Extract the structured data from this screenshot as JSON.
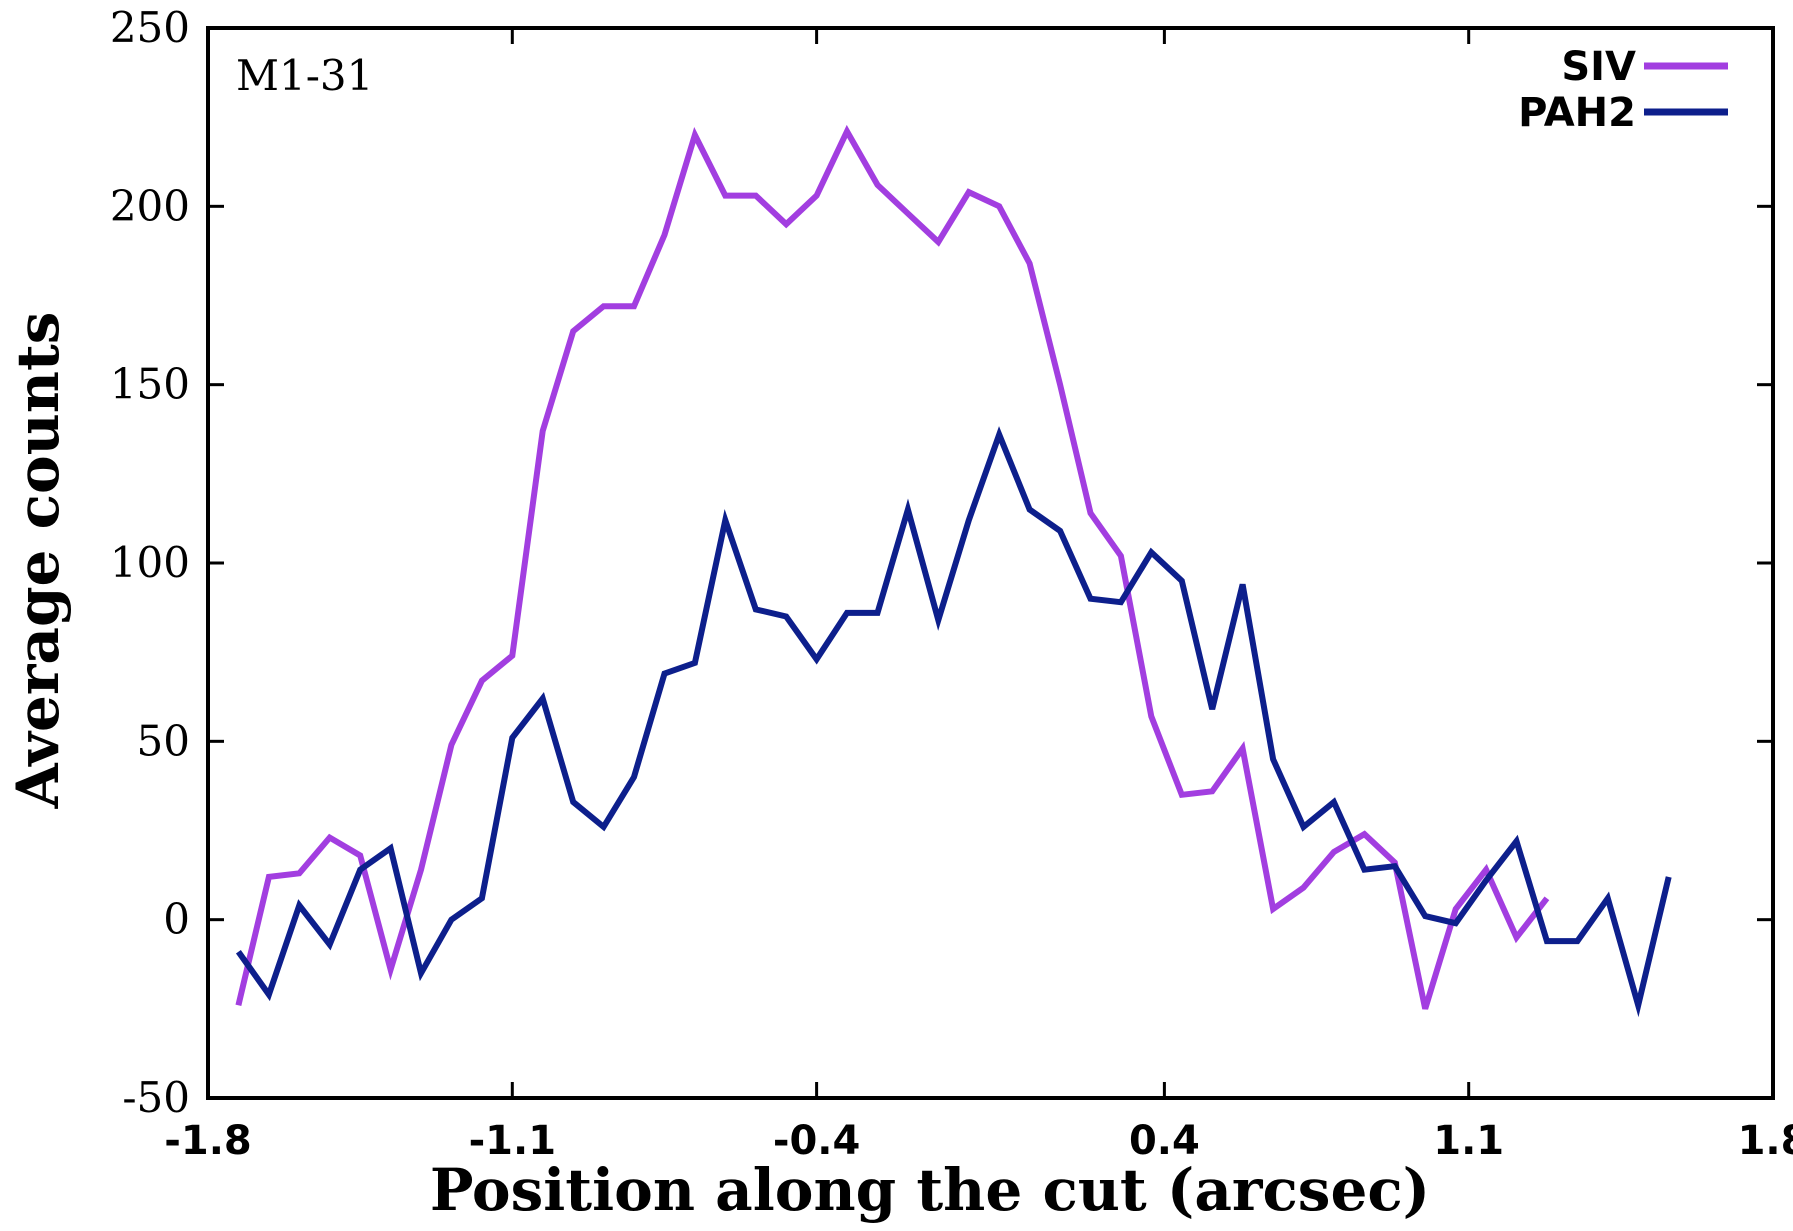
{
  "chart_data": {
    "type": "line",
    "title": "",
    "xlabel": "Position along the cut (arcsec)",
    "ylabel": "Average counts",
    "annotation": "M1-31",
    "xlim": [
      -1.8,
      1.8
    ],
    "ylim": [
      -50,
      250
    ],
    "xticks": [
      "-1.8",
      "-1.1",
      "-0.4",
      "0.4",
      "1.1",
      "1.8"
    ],
    "xtick_values": [
      -1.8,
      -1.1,
      -0.4,
      0.4,
      1.1,
      1.8
    ],
    "yticks": [
      "-50",
      "0",
      "50",
      "100",
      "150",
      "200",
      "250"
    ],
    "ytick_values": [
      -50,
      0,
      50,
      100,
      150,
      200,
      250
    ],
    "grid": false,
    "legend_position": "top-right",
    "series": [
      {
        "name": "SIV",
        "color": "#a23ee0",
        "x": [
          -1.73,
          -1.66,
          -1.59,
          -1.52,
          -1.45,
          -1.38,
          -1.31,
          -1.24,
          -1.17,
          -1.1,
          -1.03,
          -0.96,
          -0.89,
          -0.82,
          -0.75,
          -0.68,
          -0.61,
          -0.54,
          -0.47,
          -0.4,
          -0.33,
          -0.26,
          -0.19,
          -0.12,
          -0.05,
          0.02,
          0.09,
          0.16,
          0.23,
          0.3,
          0.37,
          0.44,
          0.51,
          0.58,
          0.65,
          0.72,
          0.79,
          0.86,
          0.93,
          1.0,
          1.07,
          1.14,
          1.21,
          1.28,
          1.35
        ],
        "values": [
          -24,
          12,
          13,
          23,
          18,
          -14,
          14,
          49,
          67,
          74,
          137,
          165,
          172,
          172,
          192,
          220,
          203,
          203,
          195,
          203,
          221,
          206,
          198,
          190,
          204,
          200,
          184,
          150,
          114,
          102,
          57,
          35,
          36,
          48,
          3,
          9,
          19,
          24,
          16,
          -25,
          3,
          14,
          -5,
          6,
          null
        ]
      },
      {
        "name": "PAH2",
        "color": "#0d1f8c",
        "x": [
          -1.73,
          -1.66,
          -1.59,
          -1.52,
          -1.45,
          -1.38,
          -1.31,
          -1.24,
          -1.17,
          -1.1,
          -1.03,
          -0.96,
          -0.89,
          -0.82,
          -0.75,
          -0.68,
          -0.61,
          -0.54,
          -0.47,
          -0.4,
          -0.33,
          -0.26,
          -0.19,
          -0.12,
          -0.05,
          0.02,
          0.09,
          0.16,
          0.23,
          0.3,
          0.37,
          0.44,
          0.51,
          0.58,
          0.65,
          0.72,
          0.79,
          0.86,
          0.93,
          1.0,
          1.07,
          1.14,
          1.21,
          1.28,
          1.35,
          1.42,
          1.49,
          1.56,
          1.63
        ],
        "values": [
          -9,
          -21,
          4,
          -7,
          14,
          20,
          -15,
          0,
          6,
          51,
          62,
          33,
          26,
          40,
          69,
          72,
          112,
          87,
          85,
          73,
          86,
          86,
          115,
          84,
          112,
          136,
          115,
          109,
          90,
          89,
          103,
          95,
          59,
          94,
          45,
          26,
          33,
          14,
          15,
          1,
          -1,
          11,
          22,
          -6,
          -6,
          6,
          -24,
          12,
          null
        ]
      }
    ]
  }
}
